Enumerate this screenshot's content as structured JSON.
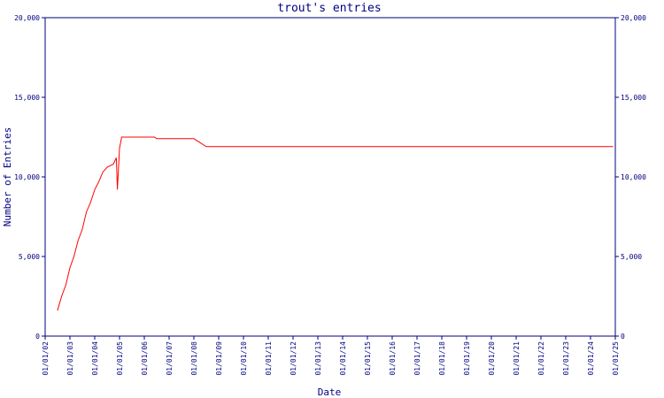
{
  "chart_data": {
    "type": "line",
    "title": "trout's entries",
    "xlabel": "Date",
    "ylabel": "Number of Entries",
    "x_ticks": [
      "01/01/02",
      "01/01/03",
      "01/01/04",
      "01/01/05",
      "01/01/06",
      "01/01/07",
      "01/01/08",
      "01/01/09",
      "01/01/10",
      "01/01/11",
      "01/01/12",
      "01/01/13",
      "01/01/14",
      "01/01/15",
      "01/01/16",
      "01/01/17",
      "01/01/18",
      "01/01/19",
      "01/01/20",
      "01/01/21",
      "01/01/22",
      "01/01/23",
      "01/01/24",
      "01/01/25"
    ],
    "y_ticks": [
      {
        "value": 0,
        "label": "0"
      },
      {
        "value": 5000,
        "label": "5,000"
      },
      {
        "value": 10000,
        "label": "10,000"
      },
      {
        "value": 15000,
        "label": "15,000"
      },
      {
        "value": 20000,
        "label": "20,000"
      }
    ],
    "ylim": [
      0,
      20000
    ],
    "xlim": [
      "2002-01-01",
      "2025-01-01"
    ],
    "grid": false,
    "line_color": "#ff0000",
    "axis_color": "#000080",
    "series": [
      {
        "points": [
          [
            "2002-07-01",
            1600
          ],
          [
            "2002-09-01",
            2500
          ],
          [
            "2002-11-01",
            3200
          ],
          [
            "2003-01-01",
            4300
          ],
          [
            "2003-03-01",
            5000
          ],
          [
            "2003-05-01",
            6000
          ],
          [
            "2003-07-01",
            6700
          ],
          [
            "2003-09-01",
            7800
          ],
          [
            "2003-11-01",
            8400
          ],
          [
            "2004-01-01",
            9200
          ],
          [
            "2004-03-01",
            9700
          ],
          [
            "2004-05-01",
            10300
          ],
          [
            "2004-07-01",
            10600
          ],
          [
            "2004-10-01",
            10800
          ],
          [
            "2004-11-15",
            11200
          ],
          [
            "2004-12-01",
            9200
          ],
          [
            "2005-01-01",
            11800
          ],
          [
            "2005-02-01",
            12500
          ],
          [
            "2006-06-01",
            12500
          ],
          [
            "2006-07-01",
            12400
          ],
          [
            "2008-01-01",
            12400
          ],
          [
            "2008-07-01",
            11900
          ],
          [
            "2024-12-01",
            11900
          ]
        ]
      }
    ]
  }
}
